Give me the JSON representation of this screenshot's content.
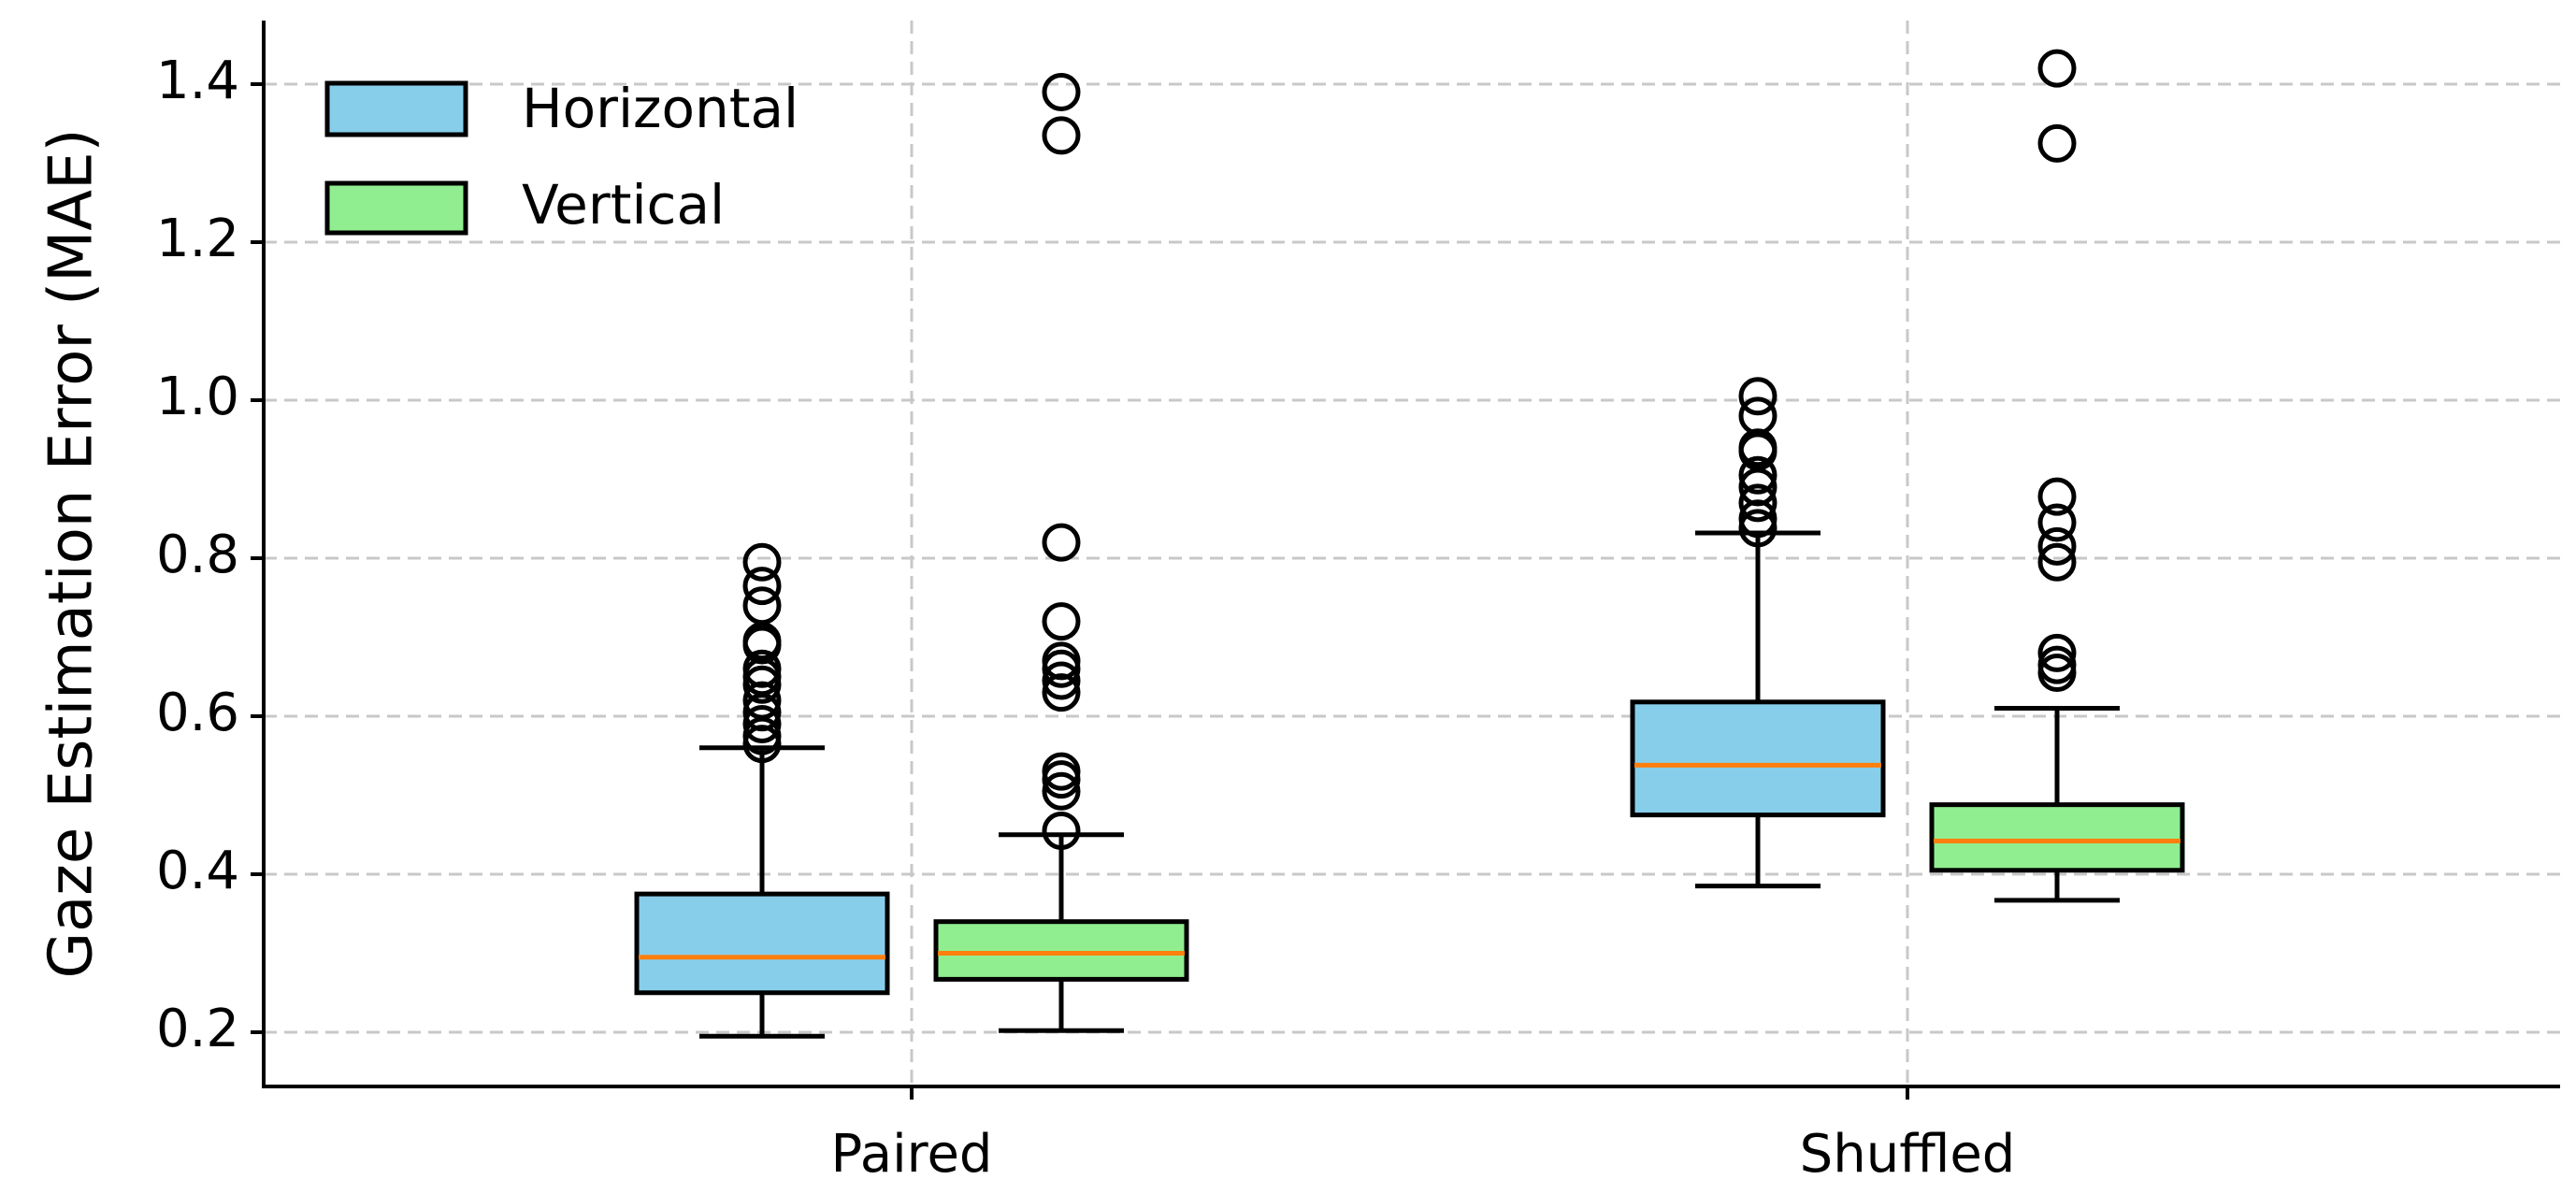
{
  "chart_data": {
    "type": "box",
    "title": "",
    "xlabel": "",
    "ylabel": "Gaze Estimation Error (MAE)",
    "ylim": [
      0.135,
      1.48
    ],
    "yticks": [
      0.2,
      0.4,
      0.6,
      0.8,
      1.0,
      1.2,
      1.4
    ],
    "ytick_labels": [
      "0.2",
      "0.4",
      "0.6",
      "0.8",
      "1.0",
      "1.2",
      "1.4"
    ],
    "grid": true,
    "legend_position": "upper-left",
    "categories": [
      "Paired",
      "Shuffled"
    ],
    "median_color": "#ff7f0e",
    "series": [
      {
        "name": "Horizontal",
        "color": "#87ceeb",
        "boxes": [
          {
            "whisker_low": 0.195,
            "q1": 0.25,
            "median": 0.295,
            "q3": 0.375,
            "whisker_high": 0.56,
            "outliers": [
              0.565,
              0.575,
              0.59,
              0.605,
              0.62,
              0.64,
              0.65,
              0.66,
              0.69,
              0.695,
              0.74,
              0.765,
              0.795
            ]
          },
          {
            "whisker_low": 0.385,
            "q1": 0.475,
            "median": 0.538,
            "q3": 0.618,
            "whisker_high": 0.832,
            "outliers": [
              0.838,
              0.85,
              0.87,
              0.89,
              0.905,
              0.935,
              0.94,
              0.98,
              1.005
            ]
          }
        ]
      },
      {
        "name": "Vertical",
        "color": "#90ee90",
        "boxes": [
          {
            "whisker_low": 0.202,
            "q1": 0.267,
            "median": 0.3,
            "q3": 0.34,
            "whisker_high": 0.45,
            "outliers": [
              0.455,
              0.505,
              0.52,
              0.53,
              0.63,
              0.645,
              0.66,
              0.67,
              0.72,
              0.82,
              1.335,
              1.39
            ]
          },
          {
            "whisker_low": 0.367,
            "q1": 0.405,
            "median": 0.442,
            "q3": 0.488,
            "whisker_high": 0.61,
            "outliers": [
              0.655,
              0.665,
              0.68,
              0.795,
              0.815,
              0.845,
              0.878,
              1.325,
              1.42
            ]
          }
        ]
      }
    ]
  }
}
